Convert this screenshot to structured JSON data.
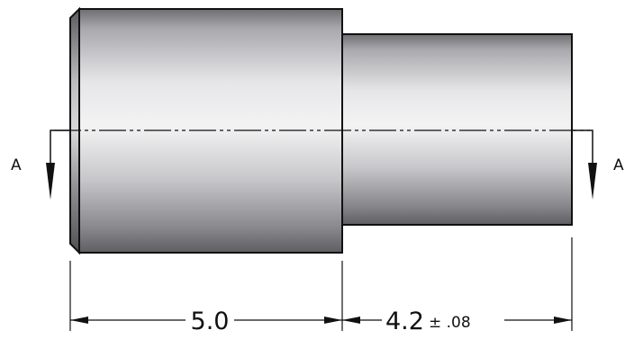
{
  "section": {
    "label_left": "A",
    "label_right": "A"
  },
  "dimensions": {
    "left_length": "5.0",
    "right_length": "4.2",
    "right_tolerance": "± .08"
  }
}
